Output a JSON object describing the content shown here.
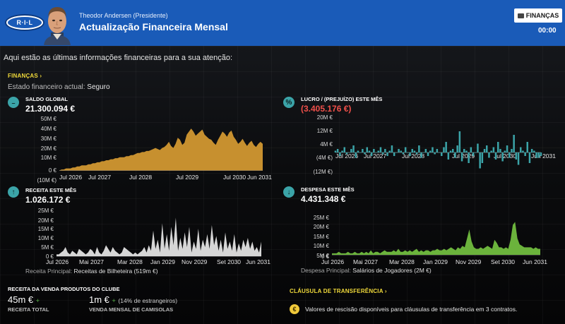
{
  "header": {
    "logo_text": "R·I·L",
    "manager_name": "Theodor Andersen (Presidente)",
    "title": "Actualização Financeira Mensal",
    "finance_button": "FINANÇAS",
    "clock": "00:00",
    "accent_color": "#1a5bb8"
  },
  "intro": "Aqui estão as últimas informações financeiras para a sua atenção:",
  "finances": {
    "section_link": "FINANÇAS ›",
    "state_label": "Estado financeiro actual:",
    "state_value": "Seguro"
  },
  "balance": {
    "label": "SALDO GLOBAL",
    "value": "21.300.094 €",
    "icon": "piggy-bank-icon"
  },
  "profit": {
    "label": "LUCRO / (PREJUÍZO) ESTE MÊS",
    "value": "(3.405.176 €)",
    "icon": "percent-icon"
  },
  "income": {
    "label": "RECEITA ESTE MÊS",
    "value": "1.026.172 €",
    "icon": "arrow-up-icon",
    "main_label": "Receita Principal:",
    "main_value": "Receitas de Bilheteira (519m €)"
  },
  "expense": {
    "label": "DESPESA ESTE MÊS",
    "value": "4.431.348 €",
    "icon": "arrow-down-icon",
    "main_label": "Despesa Principal:",
    "main_value": "Salários de Jogadores (2M €)"
  },
  "sales": {
    "title": "RECEITA DA VENDA PRODUTOS DO CLUBE",
    "total_value": "45m €",
    "total_caption": "RECEITA TOTAL",
    "shirts_value": "1m €",
    "shirts_note": "(14% de estrangeiros)",
    "shirts_caption": "VENDA MENSAL DE CAMISOLAS",
    "trend": "+"
  },
  "clause": {
    "section_link": "CLÁUSULA DE TRANSFERÊNCIA ›",
    "text": "Valores de rescisão disponíveis para cláusulas de transferência em 3 contratos.",
    "coin": "€"
  },
  "chart_data": [
    {
      "type": "area",
      "name": "balance",
      "color": "#c7902f",
      "ylim": [
        -10,
        50
      ],
      "yticks": [
        "50M €",
        "40M €",
        "30M €",
        "20M €",
        "10M €",
        "0 €",
        "(10M €)"
      ],
      "xticks": [
        "Jul 2026",
        "Jul 2027",
        "Jul 2028",
        "Jul 2029",
        "Jul 2030",
        "Jun 2031"
      ],
      "values": [
        0,
        1,
        1,
        2,
        2,
        2,
        3,
        3,
        4,
        4,
        5,
        5,
        5,
        6,
        6,
        7,
        7,
        8,
        8,
        9,
        9,
        10,
        10,
        11,
        11,
        12,
        12,
        13,
        13,
        13,
        14,
        14,
        15,
        15,
        16,
        17,
        17,
        18,
        18,
        19,
        19,
        20,
        21,
        22,
        21,
        20,
        22,
        23,
        25,
        28,
        24,
        22,
        26,
        32,
        30,
        25,
        27,
        35,
        38,
        41,
        38,
        34,
        36,
        38,
        40,
        35,
        33,
        31,
        30,
        27,
        25,
        30,
        34,
        38,
        36,
        33,
        37,
        39,
        33,
        30,
        26,
        28,
        31,
        27,
        24,
        27,
        29,
        25,
        23,
        26,
        28,
        26
      ]
    },
    {
      "type": "bar",
      "name": "profit",
      "color": "#3ba4a8",
      "ylim": [
        -12,
        20
      ],
      "yticks": [
        "20M €",
        "12M €",
        "4M €",
        "(4M €)",
        "(12M €)"
      ],
      "xticks": [
        "Jul 2026",
        "Jul 2027",
        "Jul 2028",
        "Jul 2029",
        "Jul 2030",
        "Jun 2031"
      ],
      "values": [
        1,
        2,
        -2,
        1,
        3,
        -1,
        0,
        2,
        4,
        -3,
        1,
        0,
        2,
        -1,
        3,
        1,
        -2,
        2,
        0,
        1,
        3,
        -1,
        2,
        -2,
        1,
        4,
        -2,
        0,
        2,
        1,
        -1,
        3,
        0,
        -2,
        2,
        1,
        -1,
        4,
        -3,
        0,
        2,
        -2,
        1,
        3,
        -1,
        2,
        0,
        -2,
        3,
        6,
        -4,
        1,
        2,
        -3,
        4,
        12,
        -5,
        2,
        1,
        -6,
        3,
        -2,
        0,
        5,
        -9,
        -6,
        2,
        4,
        -3,
        1,
        3,
        -4,
        6,
        2,
        -5,
        1,
        4,
        -3,
        2,
        10,
        -4,
        -7,
        3,
        1,
        -2,
        6,
        -6,
        2,
        1,
        -3,
        -3,
        -2
      ]
    },
    {
      "type": "area",
      "name": "income",
      "color": "#d6d6d6",
      "ylim": [
        0,
        25
      ],
      "yticks": [
        "25M €",
        "20M €",
        "15M €",
        "10M €",
        "5M €",
        "0 €"
      ],
      "xticks": [
        "Jul 2026",
        "Mai 2027",
        "Mar 2028",
        "Jan 2029",
        "Nov 2029",
        "Set 2030",
        "Jun 2031"
      ],
      "values": [
        1,
        1,
        2,
        3,
        5,
        2,
        1,
        3,
        2,
        1,
        4,
        3,
        2,
        1,
        2,
        4,
        3,
        1,
        5,
        2,
        1,
        3,
        6,
        4,
        2,
        5,
        3,
        2,
        1,
        2,
        5,
        4,
        3,
        2,
        1,
        2,
        1,
        2,
        3,
        5,
        2,
        6,
        3,
        14,
        4,
        9,
        2,
        18,
        4,
        12,
        3,
        16,
        6,
        21,
        3,
        10,
        4,
        13,
        5,
        16,
        2,
        8,
        4,
        15,
        3,
        9,
        5,
        12,
        4,
        17,
        6,
        11,
        3,
        9,
        2,
        13,
        4,
        8,
        3,
        12,
        2,
        7,
        3,
        9,
        5,
        10,
        4,
        8,
        3,
        5,
        2,
        8
      ]
    },
    {
      "type": "area",
      "name": "expense",
      "color": "#6bb33c",
      "ylim": [
        0,
        25
      ],
      "yticks": [
        "25M €",
        "20M €",
        "15M €",
        "10M €",
        "5M €",
        "0 €"
      ],
      "xticks": [
        "Jul 2026",
        "Mai 2027",
        "Mar 2028",
        "Jan 2029",
        "Nov 2029",
        "Set 2030",
        "Jun 2031"
      ],
      "values": [
        1,
        1,
        1,
        2,
        1,
        1,
        1,
        2,
        1,
        1,
        2,
        1,
        1,
        2,
        1,
        2,
        1,
        3,
        1,
        2,
        2,
        1,
        2,
        3,
        2,
        2,
        2,
        3,
        2,
        4,
        2,
        2,
        3,
        2,
        3,
        2,
        3,
        4,
        2,
        3,
        2,
        3,
        3,
        2,
        3,
        3,
        4,
        3,
        3,
        4,
        3,
        4,
        5,
        4,
        3,
        5,
        4,
        6,
        5,
        11,
        17,
        9,
        5,
        4,
        4,
        5,
        4,
        5,
        6,
        5,
        4,
        10,
        8,
        5,
        5,
        4,
        5,
        4,
        10,
        20,
        22,
        11,
        7,
        6,
        5,
        5,
        5,
        5,
        4,
        5,
        4,
        4
      ]
    }
  ]
}
